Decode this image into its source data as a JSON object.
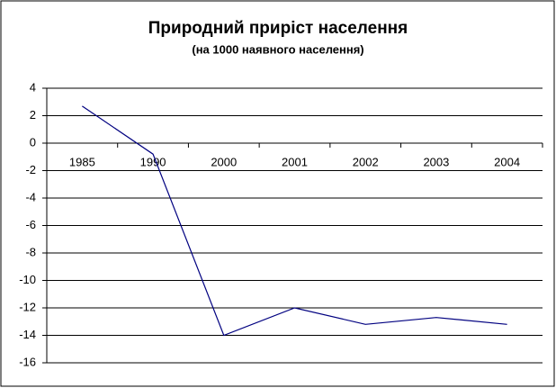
{
  "chart_data": {
    "type": "line",
    "title": "Природний приріст населення",
    "subtitle": "(на 1000 наявного населення)",
    "categories": [
      "1985",
      "1990",
      "2000",
      "2001",
      "2002",
      "2003",
      "2004"
    ],
    "values": [
      2.7,
      -0.8,
      -14.0,
      -12.0,
      -13.2,
      -12.7,
      -13.2
    ],
    "color": "#000080",
    "ylim": [
      -16,
      4
    ],
    "yticks": [
      -16,
      -14,
      -12,
      -10,
      -8,
      -6,
      -4,
      -2,
      0,
      2,
      4
    ],
    "grid": true
  }
}
